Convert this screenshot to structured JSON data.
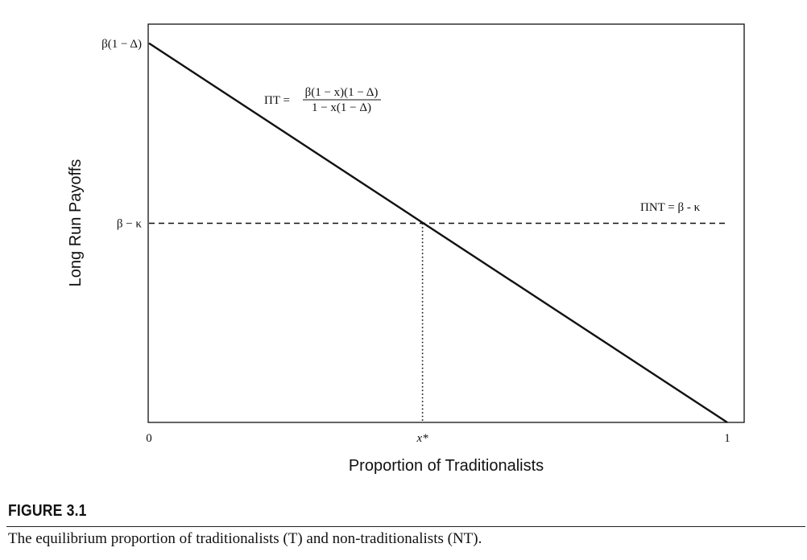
{
  "chart_data": {
    "type": "line",
    "title": "",
    "xlabel": "Proportion of Traditionalists",
    "ylabel": "Long Run Payoffs",
    "xlim": [
      0,
      1
    ],
    "x_ticks": [
      {
        "x": 0,
        "label": "0"
      },
      {
        "x": 0.473,
        "label": "x*"
      },
      {
        "x": 1,
        "label": "1"
      }
    ],
    "y_ticks": [
      {
        "y": 0.952,
        "label": "β(1 − Δ)"
      },
      {
        "y": 0.5,
        "label": "β − κ"
      }
    ],
    "ylim": [
      0,
      1
    ],
    "series": [
      {
        "name": "ΠT",
        "style": "solid",
        "x": [
          0,
          1
        ],
        "y": [
          0.952,
          0
        ],
        "annotation": {
          "lhs": "ΠT =",
          "numerator": "β(1 − x)(1 − Δ)",
          "denominator": "1 − x(1 − Δ)"
        }
      },
      {
        "name": "ΠNT",
        "style": "dashed",
        "x": [
          0,
          1
        ],
        "y": [
          0.5,
          0.5
        ],
        "annotation": {
          "lhs": "ΠNT = β - κ"
        }
      }
    ],
    "guide": {
      "style": "dotted",
      "x": 0.473,
      "from_y": 0,
      "to_y": 0.5
    },
    "grid": false,
    "legend": "none"
  },
  "figure": {
    "label": "FIGURE 3.1",
    "caption": "The equilibrium proportion of traditionalists (T) and non-traditionalists (NT)."
  }
}
